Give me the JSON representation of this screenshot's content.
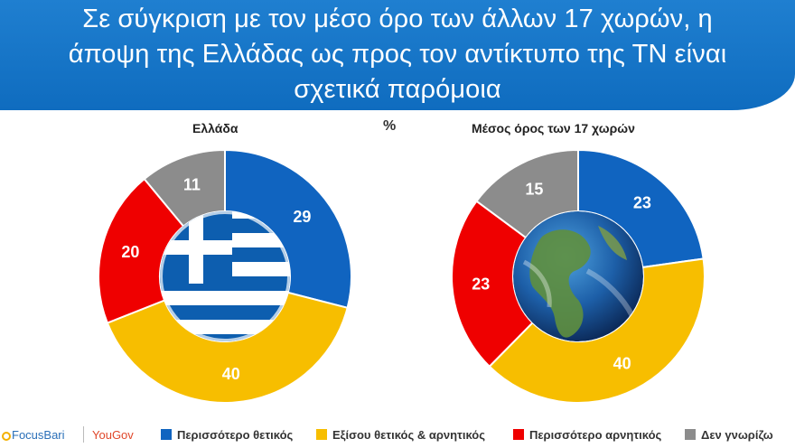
{
  "title": "Σε σύγκριση με τον μέσο όρο των άλλων 17 χωρών, η άποψη της Ελλάδας ως προς τον αντίκτυπο της ΤΝ είναι σχετικά παρόμοια",
  "title_lines": [
    "Σε σύγκριση με τον μέσο όρο των άλλων 17 χωρών, η",
    "άποψη της Ελλάδας ως προς τον αντίκτυπο της ΤΝ είναι",
    "σχετικά παρόμοια"
  ],
  "unit": "%",
  "colors": {
    "positive": "#1064c0",
    "neutral": "#f7be00",
    "negative": "#ef0000",
    "dont_know": "#8c8c8c"
  },
  "chart_data": [
    {
      "type": "pie",
      "title": "Ελλάδα",
      "center_image": "greek-flag",
      "categories": [
        "Περισσότερο θετικός",
        "Εξίσου θετικός & αρνητικός",
        "Περισσότερο αρνητικός",
        "Δεν γνωρίζω"
      ],
      "values": [
        29,
        40,
        20,
        11
      ]
    },
    {
      "type": "pie",
      "title": "Μέσος όρος των 17 χωρών",
      "center_image": "earth-globe",
      "categories": [
        "Περισσότερο θετικός",
        "Εξίσου θετικός & αρνητικός",
        "Περισσότερο αρνητικός",
        "Δεν γνωρίζω"
      ],
      "values": [
        23,
        40,
        23,
        15
      ]
    }
  ],
  "legend": {
    "brands": [
      "FocusBari",
      "YouGov"
    ],
    "items": [
      "Περισσότερο θετικός",
      "Εξίσου θετικός & αρνητικός",
      "Περισσότερο αρνητικός",
      "Δεν γνωρίζω"
    ]
  }
}
